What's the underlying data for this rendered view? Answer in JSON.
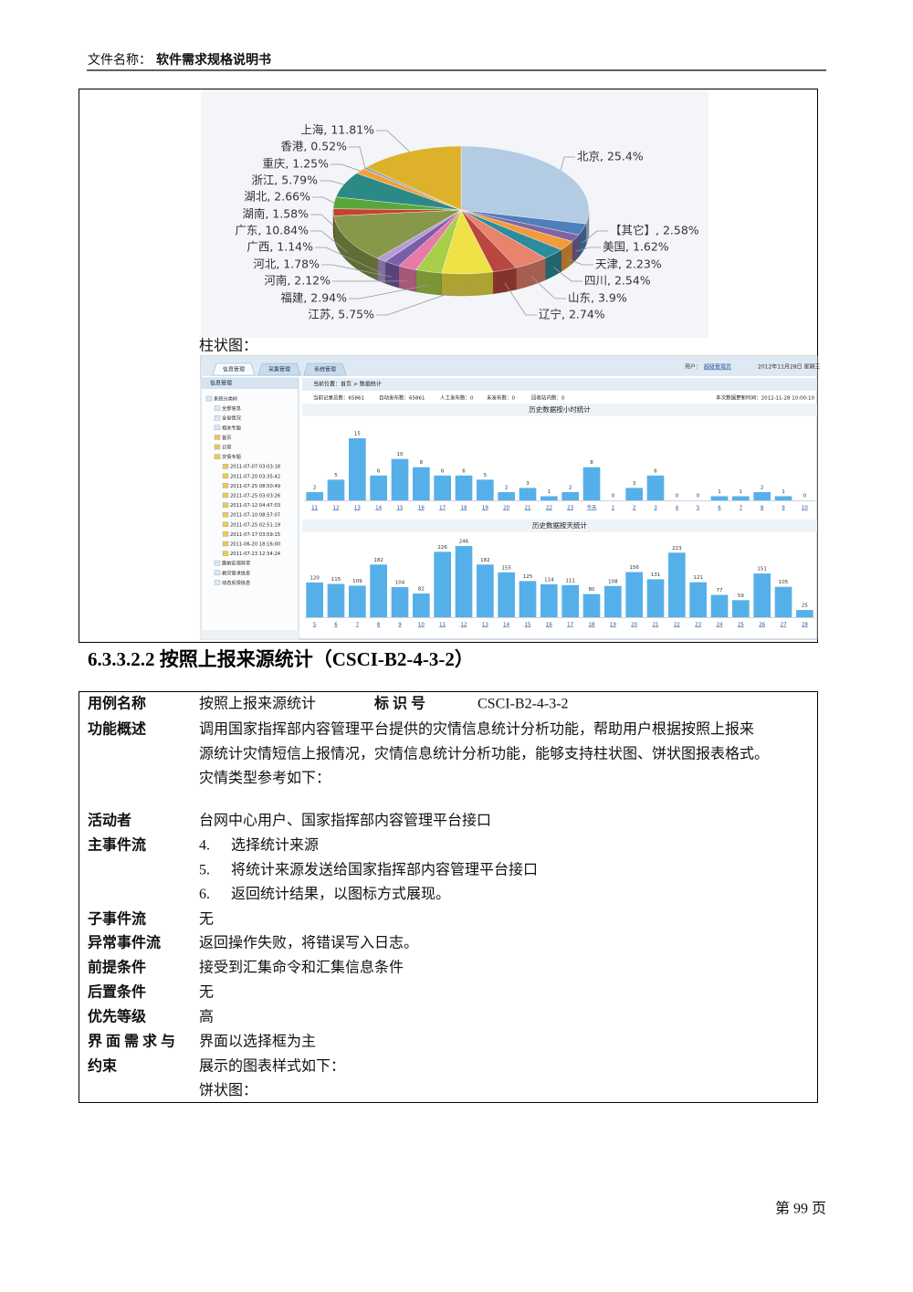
{
  "header": {
    "label": "文件名称：",
    "title": "软件需求规格说明书"
  },
  "chart_data": [
    {
      "type": "pie",
      "categories": [
        "北京",
        "【其它】",
        "美国",
        "天津",
        "四川",
        "山东",
        "辽宁",
        "江苏",
        "福建",
        "河南",
        "河北",
        "广西",
        "广东",
        "湖南",
        "湖北",
        "浙江",
        "重庆",
        "香港",
        "上海"
      ],
      "values": [
        25.4,
        2.58,
        1.62,
        2.23,
        2.54,
        3.9,
        2.74,
        5.75,
        2.94,
        2.12,
        1.78,
        1.14,
        10.84,
        1.58,
        2.66,
        5.79,
        1.25,
        0.52,
        11.81
      ],
      "value_labels": [
        "北京, 25.4%",
        "【其它】, 2.58%",
        "美国, 1.62%",
        "天津, 2.23%",
        "四川, 2.54%",
        "山东, 3.9%",
        "辽宁, 2.74%",
        "江苏, 5.75%",
        "福建, 2.94%",
        "河南, 2.12%",
        "河北, 1.78%",
        "广西, 1.14%",
        "广东, 10.84%",
        "湖南, 1.58%",
        "湖北, 2.66%",
        "浙江, 5.79%",
        "重庆, 1.25%",
        "香港, 0.52%",
        "上海, 11.81%"
      ],
      "colors": [
        "#b3cbe3",
        "#4f7fba",
        "#8064a2",
        "#f29a3c",
        "#2c8c9c",
        "#e8836e",
        "#b9473f",
        "#efe246",
        "#a8cf4a",
        "#e87aa8",
        "#7b5ea8",
        "#b59cd6",
        "#86984a",
        "#c8412f",
        "#5aa63c",
        "#2b8a86",
        "#f0a03c",
        "#9aa3ad",
        "#ddb12a"
      ]
    },
    {
      "type": "bar",
      "title": "历史数据按小时统计",
      "categories": [
        "11",
        "12",
        "13",
        "14",
        "15",
        "16",
        "17",
        "18",
        "19",
        "20",
        "21",
        "22",
        "23",
        "今天",
        "1",
        "2",
        "3",
        "4",
        "5",
        "6",
        "7",
        "8",
        "9",
        "10"
      ],
      "values": [
        2,
        5,
        15,
        6,
        10,
        8,
        6,
        6,
        5,
        2,
        3,
        1,
        2,
        8,
        0,
        3,
        6,
        0,
        0,
        1,
        1,
        2,
        1,
        0
      ],
      "color": "#55b0ea",
      "ylim": [
        0,
        15
      ]
    },
    {
      "type": "bar",
      "title": "历史数据按天统计",
      "categories": [
        "5",
        "6",
        "7",
        "8",
        "9",
        "10",
        "11",
        "12",
        "13",
        "14",
        "15",
        "16",
        "17",
        "18",
        "19",
        "20",
        "21",
        "22",
        "23",
        "24",
        "25",
        "26",
        "27",
        "28"
      ],
      "values": [
        120,
        115,
        109,
        182,
        104,
        82,
        226,
        246,
        182,
        155,
        125,
        114,
        111,
        80,
        108,
        156,
        131,
        223,
        121,
        77,
        59,
        151,
        105,
        25
      ],
      "color": "#55b0ea",
      "ylim": [
        0,
        246
      ]
    }
  ],
  "caption_bar": "柱状图：",
  "screenshot": {
    "tabs": [
      "信息管理",
      "采集管理",
      "系统管理"
    ],
    "user_label": "用户：",
    "user": "超级管理员",
    "date": "2012年11月28日 星期三",
    "sidebar_title": "信息管理",
    "tree": [
      "系统分类树",
      "全部信息",
      "全省情况",
      "相关专题",
      "首页",
      "日常",
      "灾情专题",
      "2011-07-07 03:03:18",
      "2011-07-20 03:35:42",
      "2011-07-25 08:50:49",
      "2011-07-25 03:03:26",
      "2011-07-12 04:47:03",
      "2011-07-10 08:57:07",
      "2011-07-25 02:51:19",
      "2011-07-17 03:59:15",
      "2011-06-20 18:16:00",
      "2011-07-23 12:34:24",
      "震前宏观异常",
      "救灾需求信息",
      "动态反馈信息"
    ],
    "breadcrumb": "当前位置：首页 > 数据统计",
    "stats": [
      "当前记录总数：65861",
      "自动发布数：65861",
      "人工发布数：0",
      "未发布数：0",
      "回收站内数：0"
    ],
    "update_time": "本次数据更新时间：2012-11-28 10:00:10"
  },
  "section": {
    "heading": "6.3.3.2.2 按照上报来源统计（CSCI-B2-4-3-2）"
  },
  "table": {
    "rows": [
      {
        "label": [
          "用例名称"
        ],
        "lines": [
          "按照上报来源统计"
        ],
        "id_label": "标 识 号",
        "id": "CSCI-B2-4-3-2"
      },
      {
        "label": [
          "功能概述"
        ],
        "lines": [
          "调用国家指挥部内容管理平台提供的灾情信息统计分析功能，帮助用户根据按照上报来",
          "源统计灾情短信上报情况，灾情信息统计分析功能，能够支持柱状图、饼状图报表格式。",
          "灾情类型参考如下："
        ]
      },
      {
        "label": [
          "活动者"
        ],
        "lines": [
          "台网中心用户、国家指挥部内容管理平台接口"
        ]
      },
      {
        "label": [
          "主事件流"
        ],
        "steps": [
          {
            "no": "4.",
            "text": "选择统计来源"
          },
          {
            "no": "5.",
            "text": "将统计来源发送给国家指挥部内容管理平台接口"
          },
          {
            "no": "6.",
            "text": "返回统计结果，以图标方式展现。"
          }
        ]
      },
      {
        "label": [
          "子事件流"
        ],
        "lines": [
          "无"
        ]
      },
      {
        "label": [
          "异常事件流"
        ],
        "lines": [
          "返回操作失败，将错误写入日志。"
        ]
      },
      {
        "label": [
          "前提条件"
        ],
        "lines": [
          "接受到汇集命令和汇集信息条件"
        ]
      },
      {
        "label": [
          "后置条件"
        ],
        "lines": [
          "无"
        ]
      },
      {
        "label": [
          "优先等级"
        ],
        "lines": [
          "高"
        ]
      },
      {
        "label": [
          "界 面 需 求 与",
          "约束"
        ],
        "lines": [
          "界面以选择框为主",
          "展示的图表样式如下：",
          "饼状图："
        ]
      }
    ]
  },
  "footer": "第 99 页"
}
